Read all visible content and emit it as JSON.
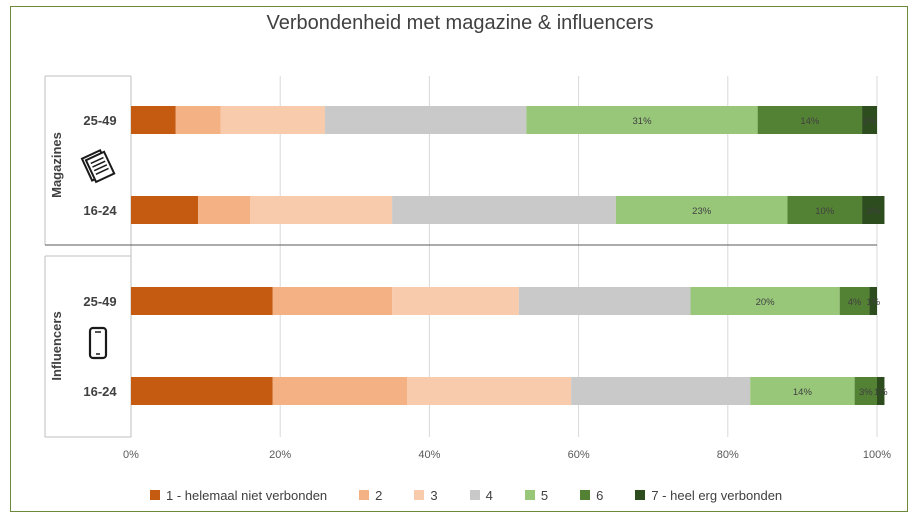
{
  "chart_data": {
    "type": "bar",
    "orientation": "horizontal",
    "stacked": "100%",
    "title": "Verbondenheid met magazine & influencers",
    "groups": [
      {
        "label": "Magazines",
        "icon": "newspaper-icon",
        "categories": [
          "25-49",
          "16-24"
        ]
      },
      {
        "label": "Influencers",
        "icon": "smartphone-icon",
        "categories": [
          "25-49",
          "16-24"
        ]
      }
    ],
    "rows": [
      {
        "group": "Magazines",
        "label": "25-49",
        "values": [
          6,
          6,
          14,
          27,
          31,
          14,
          2
        ]
      },
      {
        "group": "Magazines",
        "label": "16-24",
        "values": [
          9,
          7,
          19,
          30,
          23,
          10,
          3
        ]
      },
      {
        "group": "Influencers",
        "label": "25-49",
        "values": [
          19,
          16,
          17,
          23,
          20,
          4,
          1
        ]
      },
      {
        "group": "Influencers",
        "label": "16-24",
        "values": [
          19,
          18,
          22,
          24,
          14,
          3,
          1
        ]
      }
    ],
    "data_labels": [
      [
        "",
        "",
        "",
        "",
        "31%",
        "14%",
        "2%"
      ],
      [
        "",
        "",
        "",
        "",
        "23%",
        "10%",
        "3%"
      ],
      [
        "",
        "",
        "",
        "",
        "20%",
        "4%",
        "1%"
      ],
      [
        "",
        "",
        "",
        "",
        "14%",
        "3%",
        "1%"
      ]
    ],
    "series": [
      {
        "name": "1 - helemaal niet verbonden",
        "color": "#c55a11"
      },
      {
        "name": "2",
        "color": "#f4b183"
      },
      {
        "name": "3",
        "color": "#f8cbad"
      },
      {
        "name": "4",
        "color": "#c9c9c9"
      },
      {
        "name": "5",
        "color": "#98c77a"
      },
      {
        "name": "6",
        "color": "#548235"
      },
      {
        "name": "7 - heel erg verbonden",
        "color": "#2e4d1e"
      }
    ],
    "x_ticks": [
      "0%",
      "20%",
      "40%",
      "60%",
      "80%",
      "100%"
    ],
    "xlim": [
      0,
      100
    ],
    "grid": true,
    "legend_position": "bottom"
  }
}
